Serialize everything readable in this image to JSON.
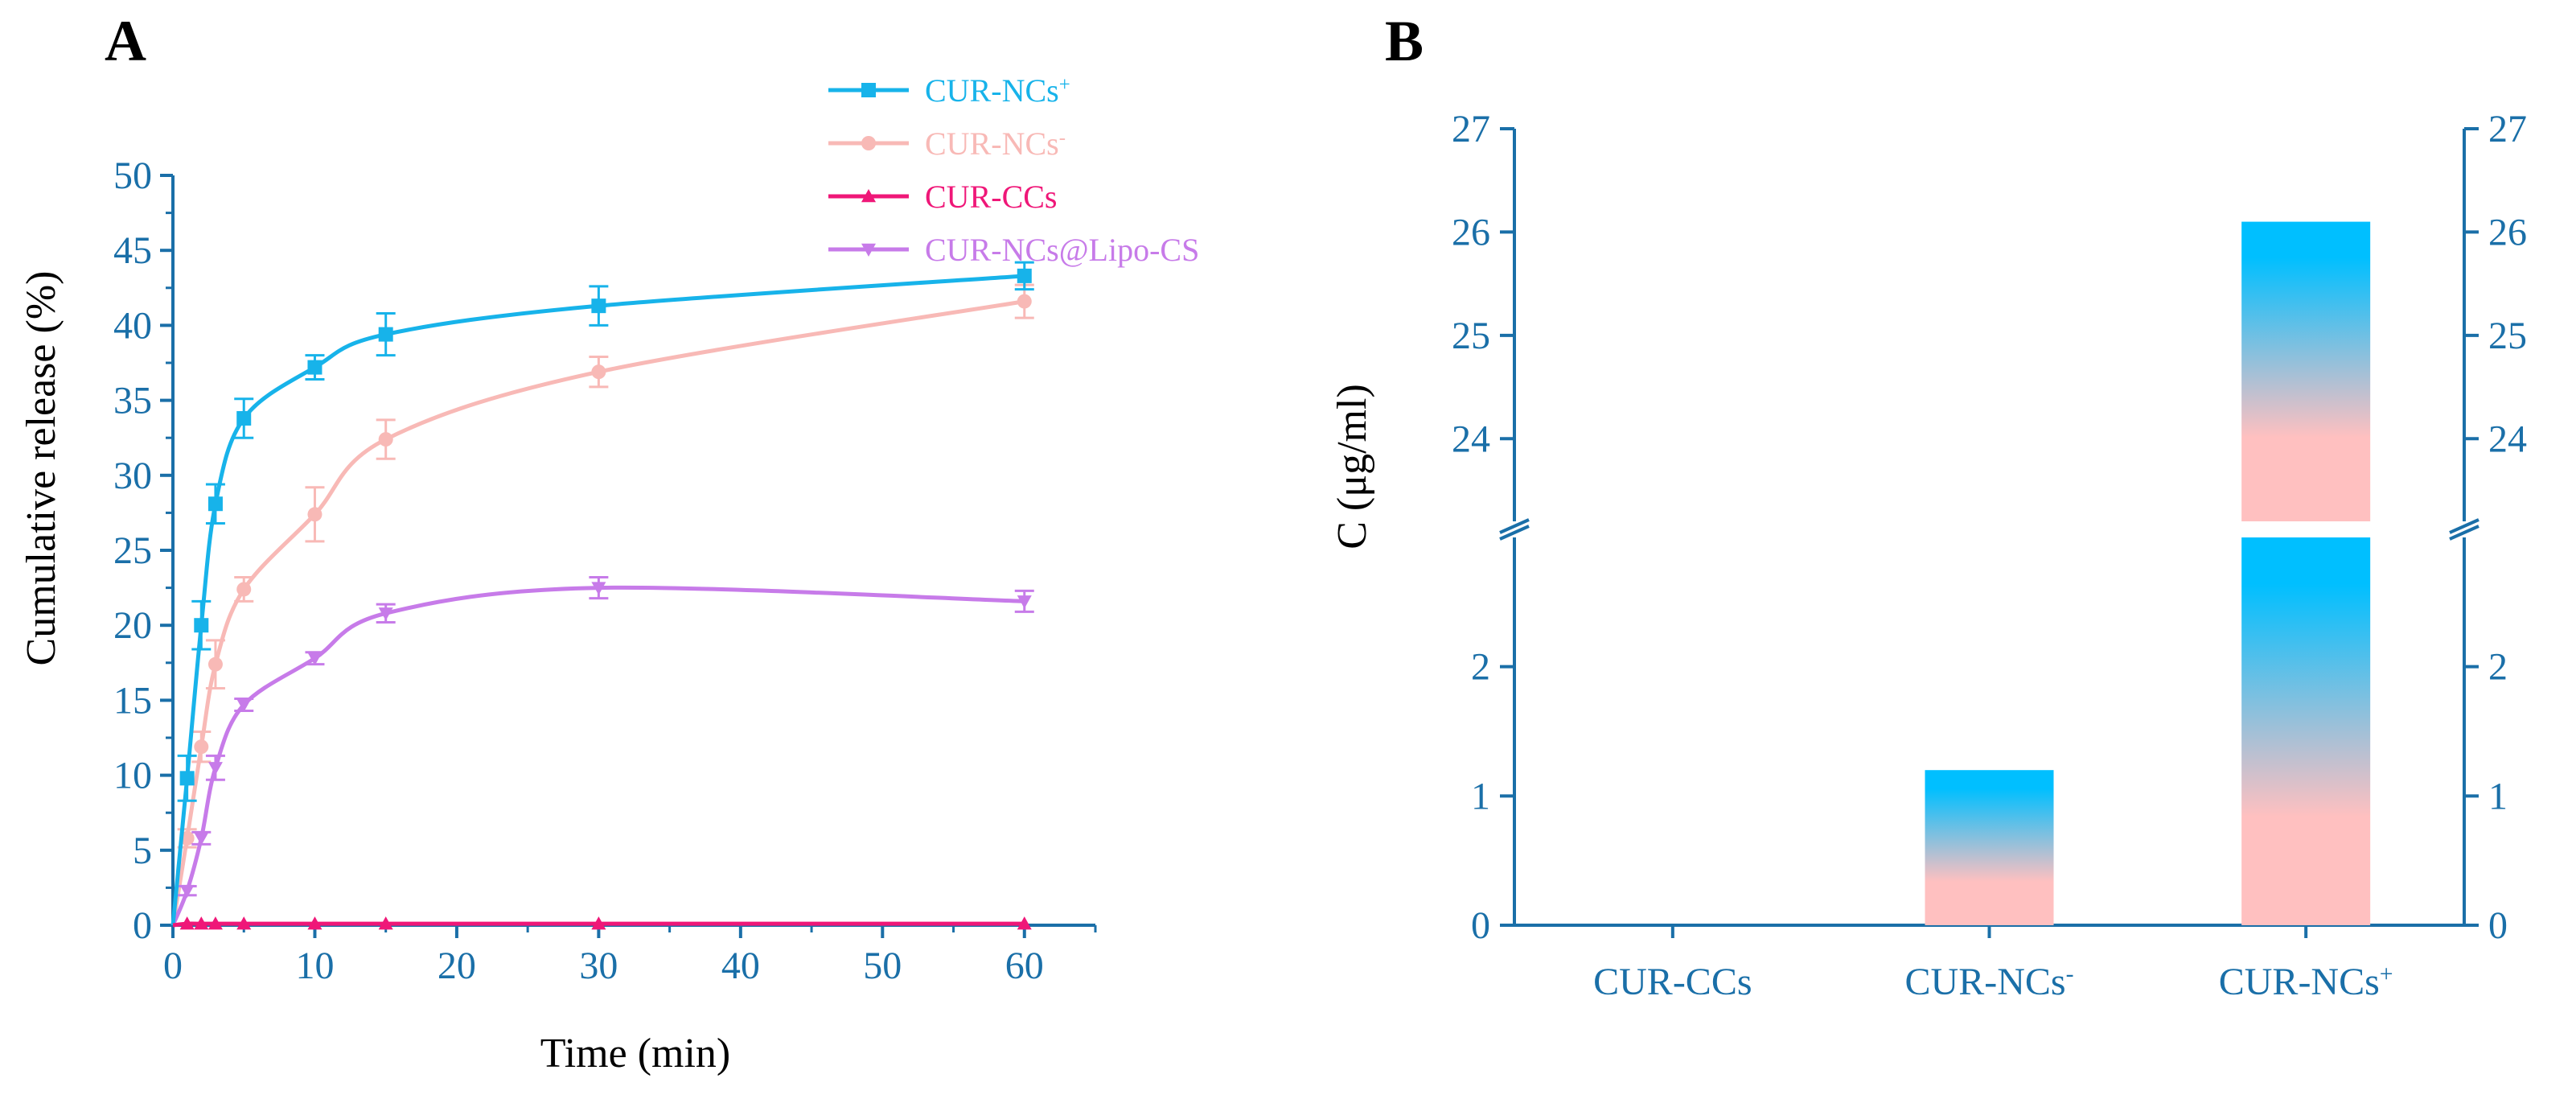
{
  "colors": {
    "axis": "#1a6fa8",
    "cur_ncs_plus": "#17b3ea",
    "cur_ncs_minus": "#f8b9b6",
    "cur_ccs": "#ef1778",
    "cur_ncs_lipo": "#c77be9",
    "bar_top": "#00bfff",
    "bar_bottom": "#ffc0c0"
  },
  "chart_data": [
    {
      "panel": "A",
      "type": "line",
      "title": "",
      "xlabel": "Time (min)",
      "ylabel": "Cumulative release (%)",
      "xlim": [
        0,
        65
      ],
      "ylim": [
        0,
        50
      ],
      "xticks": [
        0,
        10,
        20,
        30,
        40,
        50,
        60
      ],
      "yticks": [
        0,
        5,
        10,
        15,
        20,
        25,
        30,
        35,
        40,
        45,
        50
      ],
      "x": [
        0,
        1,
        2,
        3,
        5,
        10,
        15,
        30,
        60
      ],
      "series": [
        {
          "name": "CUR-NCs",
          "superscript": "+",
          "marker": "square",
          "color": "#17b3ea",
          "values": [
            0,
            9.8,
            20.0,
            28.1,
            33.8,
            37.2,
            39.4,
            41.3,
            43.3
          ],
          "errors": [
            0,
            1.5,
            1.6,
            1.3,
            1.3,
            0.8,
            1.4,
            1.3,
            0.9
          ]
        },
        {
          "name": "CUR-NCs",
          "superscript": "-",
          "marker": "circle",
          "color": "#f8b9b6",
          "values": [
            0,
            5.8,
            11.9,
            17.4,
            22.4,
            27.4,
            32.4,
            36.9,
            41.6
          ],
          "errors": [
            0,
            0.6,
            1.0,
            1.6,
            0.8,
            1.8,
            1.3,
            1.0,
            1.1
          ]
        },
        {
          "name": "CUR-CCs",
          "superscript": "",
          "marker": "triangle-up",
          "color": "#ef1778",
          "values": [
            0,
            0.1,
            0.1,
            0.1,
            0.1,
            0.1,
            0.1,
            0.1,
            0.1
          ],
          "errors": [
            0,
            0,
            0,
            0,
            0,
            0,
            0,
            0,
            0
          ]
        },
        {
          "name": "CUR-NCs@Lipo-CS",
          "superscript": "",
          "marker": "triangle-down",
          "color": "#c77be9",
          "values": [
            0,
            2.3,
            5.8,
            10.5,
            14.7,
            17.8,
            20.8,
            22.5,
            21.6
          ],
          "errors": [
            0,
            0.3,
            0.4,
            0.8,
            0.4,
            0.4,
            0.6,
            0.7,
            0.7
          ]
        }
      ],
      "legend_position": "top-right"
    },
    {
      "panel": "B",
      "type": "bar",
      "title": "",
      "xlabel": "",
      "ylabel": "C (μg/ml)",
      "categories": [
        {
          "name": "CUR-CCs",
          "superscript": ""
        },
        {
          "name": "CUR-NCs",
          "superscript": "-"
        },
        {
          "name": "CUR-NCs",
          "superscript": "+"
        }
      ],
      "values": [
        0,
        1.2,
        26.1
      ],
      "axis_break": [
        3,
        23.2
      ],
      "ylim": [
        0,
        27
      ],
      "lower_yticks": [
        0,
        1,
        2
      ],
      "upper_yticks": [
        24,
        25,
        26,
        27
      ],
      "fill": "vertical gradient (blue top to pink bottom)"
    }
  ]
}
